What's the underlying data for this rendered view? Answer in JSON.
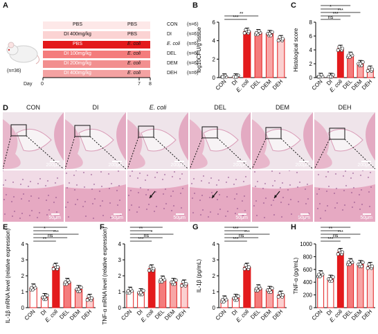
{
  "panels": {
    "A": "A",
    "B": "B",
    "C": "C",
    "D": "D",
    "E": "E",
    "F": "F",
    "G": "G",
    "H": "H"
  },
  "colors": {
    "con": "#ffffff",
    "di": "#ffffff",
    "ecoli": "#e31a1c",
    "del": "#f47c7c",
    "dem": "#f7a6a6",
    "deh": "#fbd0d0",
    "tissue": "#e9b3c9"
  },
  "panelA": {
    "mouse_n": "(n=36)",
    "day_label": "Day",
    "day_ticks": [
      "0",
      "7",
      "8"
    ],
    "rows": [
      {
        "pre": "PBS",
        "treat": "PBS",
        "group": "CON",
        "n": "(n=6)",
        "color": "#fde8e8",
        "light": false
      },
      {
        "pre": "DI 400mg/kg",
        "treat": "PBS",
        "group": "DI",
        "n": "(n=6)",
        "color": "#fbd3d3",
        "light": false
      },
      {
        "pre": "PBS",
        "treat": "E. coli",
        "group": "E. coli",
        "n": "(n=6)",
        "color": "#e31a1c",
        "light": true
      },
      {
        "pre": "DI 100mg/kg",
        "treat": "E. coli",
        "group": "DEL",
        "n": "(n=6)",
        "color": "#f47c7c",
        "light": true
      },
      {
        "pre": "DI 200mg/kg",
        "treat": "E. coli",
        "group": "DEM",
        "n": "(n=6)",
        "color": "#f28f8f",
        "light": true
      },
      {
        "pre": "DI 400mg/kg",
        "treat": "E. coli",
        "group": "DEH",
        "n": "(n=6)",
        "color": "#f4a2a2",
        "light": true
      }
    ]
  },
  "panelD": {
    "columns": [
      "CON",
      "DI",
      "E. coli",
      "DEL",
      "DEM",
      "DEH"
    ],
    "top_scale": "200μm",
    "bottom_scale": "50μm"
  },
  "chart_data": [
    {
      "panel": "B",
      "type": "bar",
      "categories": [
        "CON",
        "DI",
        "E. coli",
        "DEL",
        "DEM",
        "DEH"
      ],
      "values": [
        0.05,
        0.05,
        5.0,
        4.85,
        4.75,
        4.2
      ],
      "ylabel": "log10CFU/g tissue",
      "ylim": [
        0,
        6
      ],
      "yticks": [
        "0",
        "2",
        "4",
        "6"
      ],
      "significance": [
        "***",
        "**"
      ]
    },
    {
      "panel": "C",
      "type": "bar",
      "categories": [
        "CON",
        "DI",
        "E. coli",
        "DEL",
        "DEM",
        "DEH"
      ],
      "values": [
        0.15,
        0.15,
        4.2,
        3.2,
        2.0,
        1.2
      ],
      "ylabel": "Histological score",
      "ylim": [
        0,
        8
      ],
      "yticks": [
        "0",
        "2",
        "4",
        "6",
        "8"
      ],
      "significance": [
        "ns",
        "***",
        "***",
        "*",
        "***"
      ]
    },
    {
      "panel": "E",
      "type": "bar",
      "categories": [
        "CON",
        "DI",
        "E. coli",
        "DEL",
        "DEM",
        "DEH"
      ],
      "values": [
        1.25,
        0.65,
        2.55,
        1.6,
        1.15,
        0.6
      ],
      "ylabel": "IL-1β mRNA level (relative expression)",
      "ylim": [
        0,
        4
      ],
      "yticks": [
        "0",
        "1",
        "2",
        "3",
        "4"
      ],
      "significance": [
        "**",
        "ns",
        "***",
        "*",
        "***"
      ]
    },
    {
      "panel": "F",
      "type": "bar",
      "categories": [
        "CON",
        "DI",
        "E. coli",
        "DEL",
        "DEM",
        "DEH"
      ],
      "values": [
        1.05,
        0.95,
        2.45,
        1.75,
        1.6,
        1.5
      ],
      "ylabel": "TNF-α mRNA level (relative expression)",
      "ylim": [
        0,
        4
      ],
      "yticks": [
        "0",
        "1",
        "2",
        "3",
        "4"
      ],
      "significance": [
        "***",
        "ns",
        "*",
        "**",
        "*"
      ]
    },
    {
      "panel": "G",
      "type": "bar",
      "categories": [
        "CON",
        "DI",
        "E. coli",
        "DEL",
        "DEM",
        "DEH"
      ],
      "values": [
        0.5,
        0.6,
        2.55,
        1.2,
        1.1,
        0.8
      ],
      "ylabel": "IL-1β (pg/mL)",
      "ylim": [
        0,
        4
      ],
      "yticks": [
        "0",
        "1",
        "2",
        "3",
        "4"
      ],
      "significance": [
        "***",
        "ns",
        "***",
        "***",
        "***"
      ]
    },
    {
      "panel": "H",
      "type": "bar",
      "categories": [
        "CON",
        "DI",
        "E. coli",
        "DEL",
        "DEM",
        "DEH"
      ],
      "values": [
        520,
        450,
        870,
        710,
        680,
        650
      ],
      "ylabel": "TNF-α (pg/mL)",
      "ylim": [
        0,
        1000
      ],
      "yticks": [
        "0",
        "200",
        "400",
        "600",
        "800",
        "1000"
      ],
      "significance": [
        "***",
        "ns",
        "***",
        "**",
        "*"
      ]
    }
  ]
}
